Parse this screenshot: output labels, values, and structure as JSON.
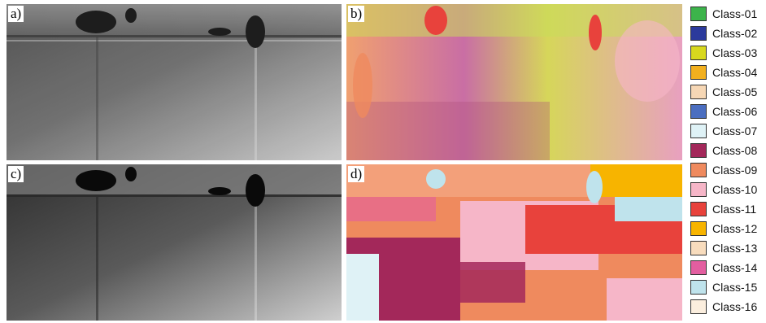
{
  "panels": [
    {
      "id": "a",
      "label": "a)"
    },
    {
      "id": "b",
      "label": "b)"
    },
    {
      "id": "c",
      "label": "c)"
    },
    {
      "id": "d",
      "label": "d)"
    }
  ],
  "legend": [
    {
      "label": "Class-01",
      "color": "#3cb44b"
    },
    {
      "label": "Class-02",
      "color": "#2b3a9c"
    },
    {
      "label": "Class-03",
      "color": "#d8d81e"
    },
    {
      "label": "Class-04",
      "color": "#f2b01f"
    },
    {
      "label": "Class-05",
      "color": "#f6d7b5"
    },
    {
      "label": "Class-06",
      "color": "#4b6ec0"
    },
    {
      "label": "Class-07",
      "color": "#dff2f6"
    },
    {
      "label": "Class-08",
      "color": "#a3285a"
    },
    {
      "label": "Class-09",
      "color": "#ef8a5e"
    },
    {
      "label": "Class-10",
      "color": "#f6b6c8"
    },
    {
      "label": "Class-11",
      "color": "#e8423c"
    },
    {
      "label": "Class-12",
      "color": "#f7b400"
    },
    {
      "label": "Class-13",
      "color": "#f8dcbd"
    },
    {
      "label": "Class-14",
      "color": "#e35ea0"
    },
    {
      "label": "Class-15",
      "color": "#bfe3ec"
    },
    {
      "label": "Class-16",
      "color": "#fbeede"
    }
  ]
}
